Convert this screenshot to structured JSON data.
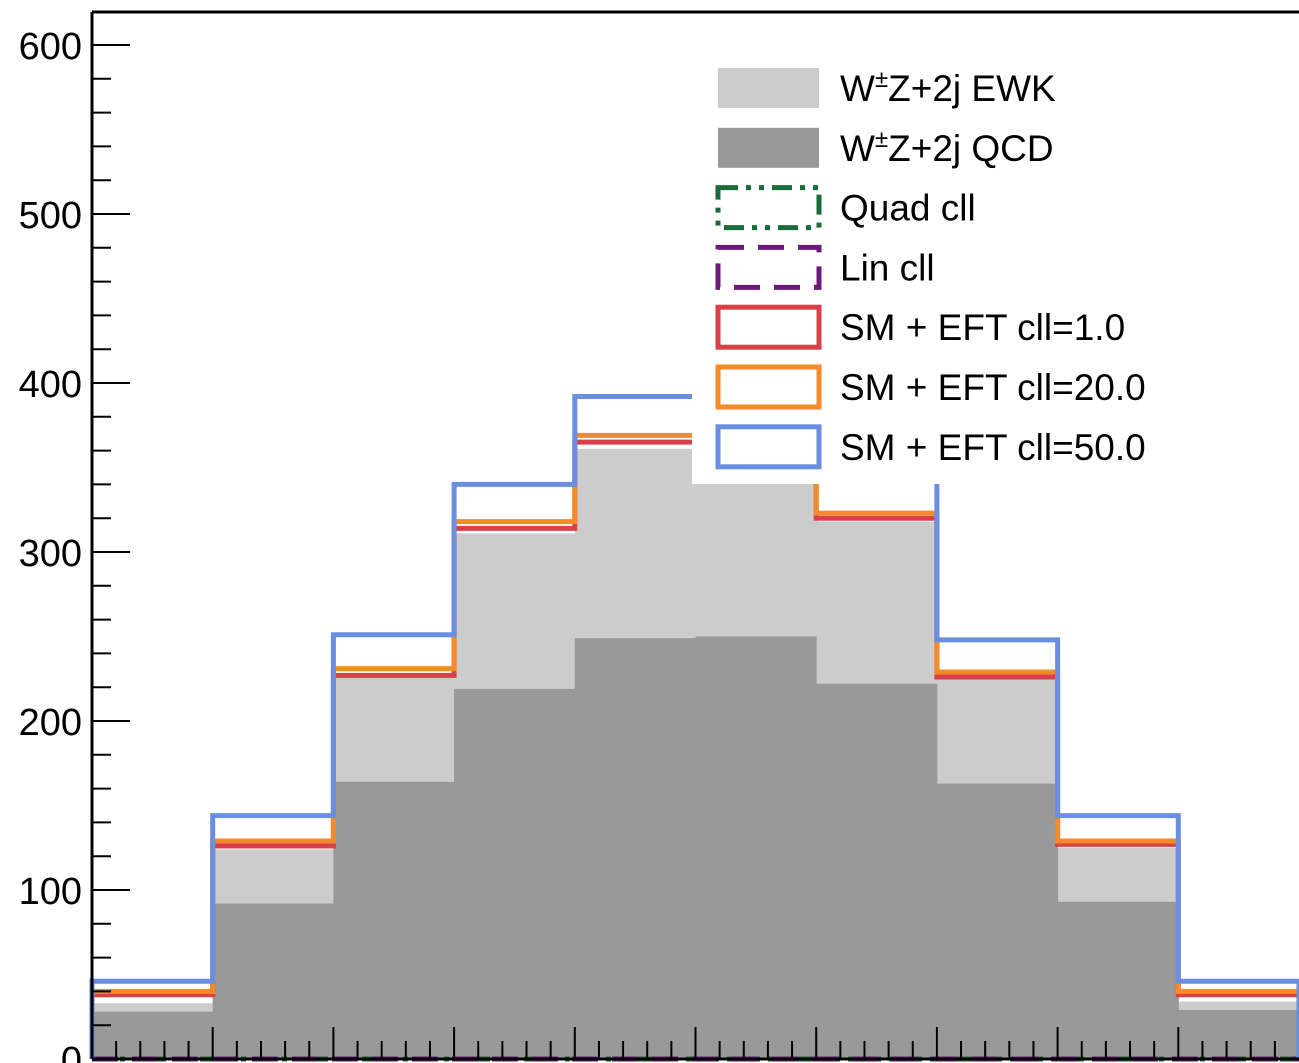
{
  "chart_data": {
    "type": "bar",
    "title": "",
    "xlabel": "",
    "ylabel": "",
    "ylim": [
      0,
      620
    ],
    "y_ticks": [
      {
        "value": 0,
        "label": "0"
      },
      {
        "value": 100,
        "label": "100"
      },
      {
        "value": 200,
        "label": "200"
      },
      {
        "value": 300,
        "label": "300"
      },
      {
        "value": 400,
        "label": "400"
      },
      {
        "value": 500,
        "label": "500"
      },
      {
        "value": 600,
        "label": "600"
      }
    ],
    "bins": 10,
    "legend_position": "top-right",
    "stacked": [
      {
        "name": "W±Z+2j QCD",
        "legend_base": "W",
        "legend_sup": "±",
        "legend_rest": "Z+2j QCD",
        "color": "#999999",
        "values": [
          28,
          92,
          164,
          219,
          249,
          250,
          222,
          163,
          93,
          29
        ]
      },
      {
        "name": "W±Z+2j EWK",
        "legend_base": "W",
        "legend_sup": "±",
        "legend_rest": "Z+2j EWK",
        "color": "#cccccc",
        "values": [
          5,
          32,
          62,
          92,
          112,
          110,
          96,
          62,
          32,
          5
        ]
      }
    ],
    "lines": [
      {
        "name": "Quad cll",
        "color": "#1a6b3a",
        "dash": "dashdot",
        "values": [
          0,
          0,
          0,
          0,
          0,
          0,
          0,
          0,
          0,
          0
        ]
      },
      {
        "name": "Lin cll",
        "color": "#6a1a78",
        "dash": "dashed",
        "values": [
          0,
          0,
          0,
          0,
          0,
          0,
          0,
          0,
          0,
          0
        ]
      },
      {
        "name": "SM + EFT cll=1.0",
        "color": "#d9404a",
        "dash": "solid",
        "values": [
          38,
          126,
          227,
          314,
          365,
          369,
          320,
          226,
          127,
          38
        ]
      },
      {
        "name": "SM + EFT cll=20.0",
        "color": "#f58a2a",
        "dash": "solid",
        "values": [
          40,
          129,
          231,
          318,
          369,
          373,
          323,
          229,
          129,
          40
        ]
      },
      {
        "name": "SM + EFT cll=50.0",
        "color": "#6a8ee0",
        "dash": "solid",
        "values": [
          46,
          144,
          251,
          340,
          392,
          394,
          343,
          248,
          144,
          46
        ]
      }
    ],
    "legend_order": [
      "W±Z+2j EWK",
      "W±Z+2j QCD",
      "Quad cll",
      "Lin cll",
      "SM + EFT cll=1.0",
      "SM + EFT cll=20.0",
      "SM + EFT cll=50.0"
    ]
  }
}
